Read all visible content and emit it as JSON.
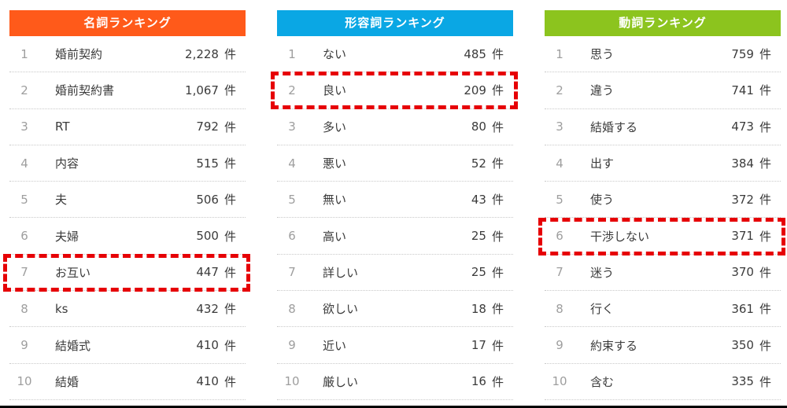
{
  "page": {
    "background_color": "#ffffff",
    "bottom_border_color": "#000000",
    "highlight_border_color": "#e60005"
  },
  "chart_data": [
    {
      "type": "table",
      "title": "名詞ランキング",
      "header_color": "#ff5a1a",
      "unit": "件",
      "columns": [
        "rank",
        "word",
        "count"
      ],
      "highlighted_rank": 7,
      "rows": [
        {
          "rank": "1",
          "word": "婚前契約",
          "count": "2,228"
        },
        {
          "rank": "2",
          "word": "婚前契約書",
          "count": "1,067"
        },
        {
          "rank": "3",
          "word": "RT",
          "count": "792"
        },
        {
          "rank": "4",
          "word": "内容",
          "count": "515"
        },
        {
          "rank": "5",
          "word": "夫",
          "count": "506"
        },
        {
          "rank": "6",
          "word": "夫婦",
          "count": "500"
        },
        {
          "rank": "7",
          "word": "お互い",
          "count": "447"
        },
        {
          "rank": "8",
          "word": "ks",
          "count": "432"
        },
        {
          "rank": "9",
          "word": "結婚式",
          "count": "410"
        },
        {
          "rank": "10",
          "word": "結婚",
          "count": "410"
        }
      ]
    },
    {
      "type": "table",
      "title": "形容詞ランキング",
      "header_color": "#0aa7e4",
      "unit": "件",
      "columns": [
        "rank",
        "word",
        "count"
      ],
      "highlighted_rank": 2,
      "rows": [
        {
          "rank": "1",
          "word": "ない",
          "count": "485"
        },
        {
          "rank": "2",
          "word": "良い",
          "count": "209"
        },
        {
          "rank": "3",
          "word": "多い",
          "count": "80"
        },
        {
          "rank": "4",
          "word": "悪い",
          "count": "52"
        },
        {
          "rank": "5",
          "word": "無い",
          "count": "43"
        },
        {
          "rank": "6",
          "word": "高い",
          "count": "25"
        },
        {
          "rank": "7",
          "word": "詳しい",
          "count": "25"
        },
        {
          "rank": "8",
          "word": "欲しい",
          "count": "18"
        },
        {
          "rank": "9",
          "word": "近い",
          "count": "17"
        },
        {
          "rank": "10",
          "word": "厳しい",
          "count": "16"
        }
      ]
    },
    {
      "type": "table",
      "title": "動詞ランキング",
      "header_color": "#8cc41e",
      "unit": "件",
      "columns": [
        "rank",
        "word",
        "count"
      ],
      "highlighted_rank": 6,
      "rows": [
        {
          "rank": "1",
          "word": "思う",
          "count": "759"
        },
        {
          "rank": "2",
          "word": "違う",
          "count": "741"
        },
        {
          "rank": "3",
          "word": "結婚する",
          "count": "473"
        },
        {
          "rank": "4",
          "word": "出す",
          "count": "384"
        },
        {
          "rank": "5",
          "word": "使う",
          "count": "372"
        },
        {
          "rank": "6",
          "word": "干渉しない",
          "count": "371"
        },
        {
          "rank": "7",
          "word": "迷う",
          "count": "370"
        },
        {
          "rank": "8",
          "word": "行く",
          "count": "361"
        },
        {
          "rank": "9",
          "word": "約束する",
          "count": "350"
        },
        {
          "rank": "10",
          "word": "含む",
          "count": "335"
        }
      ]
    }
  ]
}
